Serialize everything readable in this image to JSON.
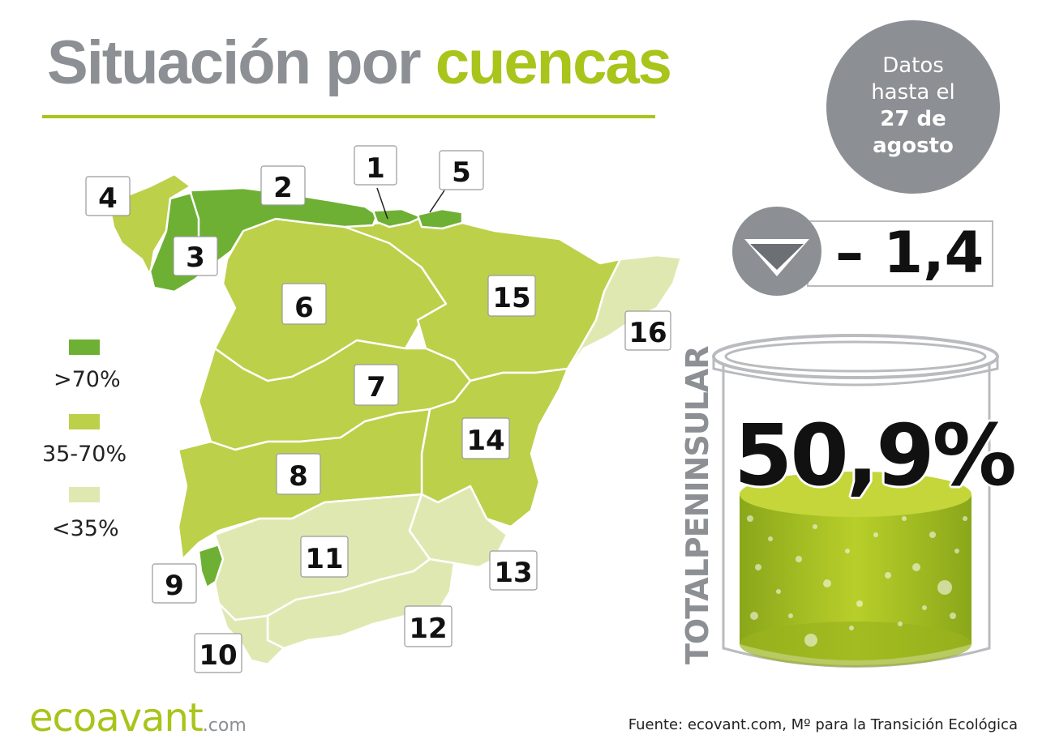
{
  "title": {
    "part1": "Situación por",
    "part2": "cuencas"
  },
  "date_badge": {
    "line1": "Datos",
    "line2": "hasta el",
    "line3": "27 de",
    "line4": "agosto"
  },
  "change": {
    "value": "– 1,4",
    "direction": "down"
  },
  "total": {
    "label": "TOTALPENINSULAR",
    "value": "50,9%",
    "fill_fraction": 0.509
  },
  "legend": [
    {
      "label": ">70%",
      "color": "#6db033"
    },
    {
      "label": "35-70%",
      "color": "#bcd04a"
    },
    {
      "label": "<35%",
      "color": "#e0e8b2"
    }
  ],
  "basins": [
    {
      "label": "1",
      "category": ">70%"
    },
    {
      "label": "2",
      "category": ">70%"
    },
    {
      "label": "3",
      "category": ">70%"
    },
    {
      "label": "4",
      "category": "35-70%"
    },
    {
      "label": "5",
      "category": ">70%"
    },
    {
      "label": "6",
      "category": "35-70%"
    },
    {
      "label": "7",
      "category": "35-70%"
    },
    {
      "label": "8",
      "category": "35-70%"
    },
    {
      "label": "9",
      "category": ">70%"
    },
    {
      "label": "10",
      "category": "<35%"
    },
    {
      "label": "11",
      "category": "<35%"
    },
    {
      "label": "12",
      "category": "<35%"
    },
    {
      "label": "13",
      "category": "<35%"
    },
    {
      "label": "14",
      "category": "35-70%"
    },
    {
      "label": "15",
      "category": "35-70%"
    },
    {
      "label": "16",
      "category": "<35%"
    }
  ],
  "brand": {
    "name": "ecoavant",
    "suffix": ".com"
  },
  "source": "Fuente: ecovant.com, Mº para la Transición Ecológica"
}
